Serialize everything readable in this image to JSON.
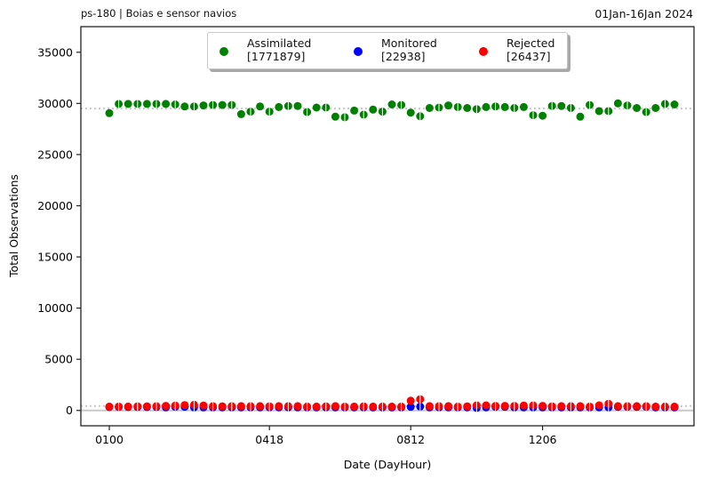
{
  "header": {
    "left": "ps-180  |  Boias e sensor navios",
    "right": "01Jan-16Jan 2024"
  },
  "chart_data": {
    "type": "scatter",
    "xlabel": "Date (DayHour)",
    "ylabel": "Total Observations",
    "x_ticks": [
      "0100",
      "0418",
      "0812",
      "1206"
    ],
    "x_tick_index": [
      0,
      17,
      32,
      46
    ],
    "ylim": [
      -1500,
      37500
    ],
    "y_ticks": [
      0,
      5000,
      10000,
      15000,
      20000,
      25000,
      30000,
      35000
    ],
    "reference_lines": [
      29500,
      430,
      0
    ],
    "legend_position": "top-center",
    "series": [
      {
        "name": "Assimilated",
        "count_label": "[1771879]",
        "color": "#008000",
        "values": [
          29050,
          29950,
          29950,
          29950,
          29950,
          29950,
          29950,
          29900,
          29700,
          29700,
          29800,
          29850,
          29850,
          29850,
          28950,
          29200,
          29700,
          29200,
          29650,
          29750,
          29750,
          29150,
          29600,
          29600,
          28700,
          28650,
          29300,
          28900,
          29400,
          29200,
          29900,
          29850,
          29100,
          28750,
          29550,
          29600,
          29800,
          29650,
          29550,
          29450,
          29650,
          29700,
          29650,
          29550,
          29650,
          28850,
          28800,
          29750,
          29750,
          29550,
          28700,
          29850,
          29250,
          29250,
          30000,
          29800,
          29550,
          29150,
          29550,
          29950,
          29900
        ]
      },
      {
        "name": "Monitored",
        "count_label": "[22938]",
        "color": "#0000ff",
        "values": [
          330,
          330,
          330,
          330,
          330,
          330,
          300,
          350,
          350,
          300,
          300,
          300,
          300,
          300,
          300,
          300,
          300,
          300,
          300,
          300,
          300,
          300,
          300,
          300,
          300,
          300,
          300,
          300,
          300,
          300,
          300,
          300,
          350,
          380,
          300,
          300,
          300,
          300,
          300,
          250,
          300,
          350,
          350,
          300,
          300,
          300,
          300,
          300,
          300,
          300,
          300,
          300,
          300,
          300,
          350,
          350,
          350,
          350,
          300,
          300,
          300
        ]
      },
      {
        "name": "Rejected",
        "count_label": "[26437]",
        "color": "#ff0000",
        "values": [
          380,
          380,
          380,
          400,
          400,
          420,
          450,
          480,
          520,
          550,
          480,
          420,
          400,
          420,
          420,
          420,
          420,
          400,
          420,
          420,
          420,
          380,
          380,
          400,
          420,
          380,
          380,
          400,
          380,
          380,
          380,
          380,
          950,
          1100,
          420,
          420,
          420,
          380,
          400,
          500,
          500,
          450,
          450,
          450,
          480,
          500,
          450,
          400,
          420,
          420,
          420,
          380,
          500,
          650,
          420,
          420,
          420,
          420,
          380,
          380,
          380
        ]
      }
    ]
  }
}
